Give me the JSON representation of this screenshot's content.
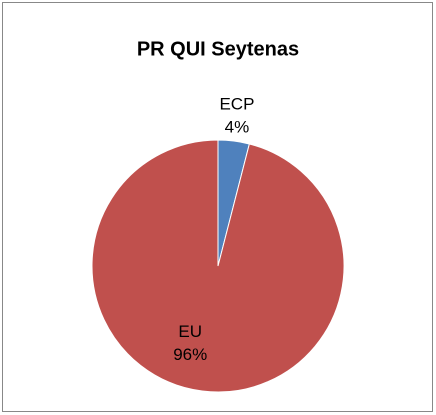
{
  "chart_data": {
    "type": "pie",
    "title": "PR QUI Seytenas",
    "categories": [
      "ECP",
      "EU"
    ],
    "values": [
      4,
      96
    ],
    "value_labels": [
      "4%",
      "96%"
    ],
    "colors": [
      "#4f81bd",
      "#c0504d"
    ]
  }
}
